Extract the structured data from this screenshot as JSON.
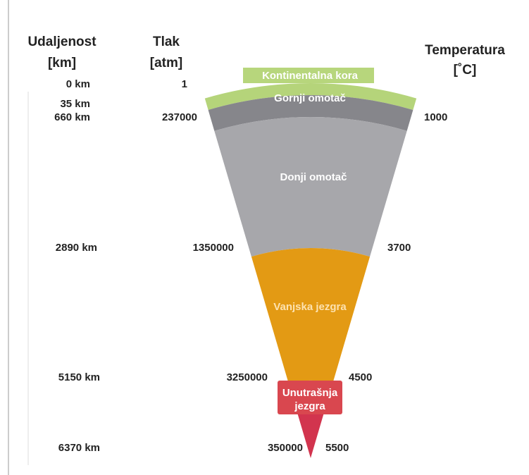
{
  "headers": {
    "distance": [
      "Udaljenost",
      "[km]"
    ],
    "pressure": [
      "Tlak",
      "[atm]"
    ],
    "temperature": [
      "Temperatura",
      "[˚C]"
    ]
  },
  "layers": [
    "Kontinentalna kora",
    "Gornji omotač",
    "Donji omotač",
    "Vanjska jezgra",
    [
      "Unutrašnja",
      "jezgra"
    ]
  ],
  "depths": [
    "0 km",
    "35 km",
    "660 km",
    "2890 km",
    "5150 km",
    "6370 km"
  ],
  "pressures": [
    "1",
    "237000",
    "1350000",
    "3250000",
    "350000"
  ],
  "temperatures": [
    "1000",
    "3700",
    "4500",
    "5500"
  ]
}
